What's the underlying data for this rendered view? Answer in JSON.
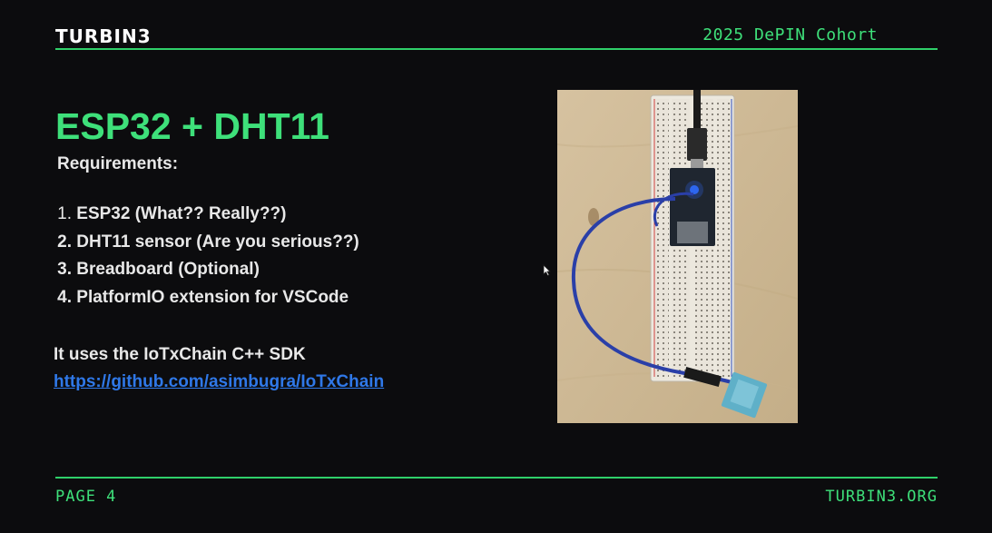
{
  "header": {
    "logo": "TURBIN3",
    "cohort": "2025 DePIN Cohort"
  },
  "content": {
    "title": "ESP32 + DHT11",
    "subtitle": "Requirements:",
    "requirements": [
      {
        "num": "1.",
        "text": "ESP32 (What?? Really??)"
      },
      {
        "num": "2.",
        "text": "DHT11 sensor (Are you serious??)"
      },
      {
        "num": "3.",
        "text": "Breadboard (Optional)"
      },
      {
        "num": "4.",
        "text": "PlatformIO extension for VSCode"
      }
    ],
    "sdk_text": "It uses the IoTxChain C++ SDK",
    "sdk_link": "https://github.com/asimbugra/IoTxChain"
  },
  "footer": {
    "page": "PAGE 4",
    "site": "TURBIN3.ORG"
  },
  "photo": {
    "icon": "breadboard-photo"
  },
  "colors": {
    "accent": "#3ee07a",
    "link": "#2f78e8",
    "background": "#0c0c0e",
    "text": "#e8e8e8"
  }
}
